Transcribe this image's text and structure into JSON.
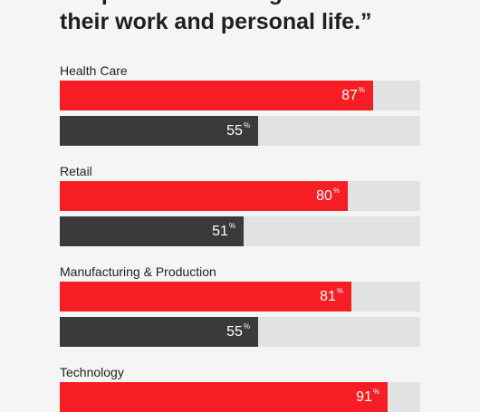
{
  "headline": {
    "line1": "People are encouraged to balance",
    "line2": "their work and personal life.”"
  },
  "colors": {
    "red": "#f71d24",
    "dark": "#3a3a3c",
    "track": "#e1e3e3"
  },
  "chart_data": {
    "type": "bar",
    "orientation": "horizontal",
    "title": "People are encouraged to balance their work and personal life.”",
    "categories": [
      "Health Care",
      "Retail",
      "Manufacturing & Production",
      "Technology"
    ],
    "series": [
      {
        "values": [
          87,
          80,
          81,
          91
        ],
        "color": "#f71d24"
      },
      {
        "values": [
          55,
          51,
          55,
          null
        ],
        "color": "#3a3a3c"
      }
    ],
    "unit": "%",
    "xlim": [
      0,
      100
    ]
  }
}
